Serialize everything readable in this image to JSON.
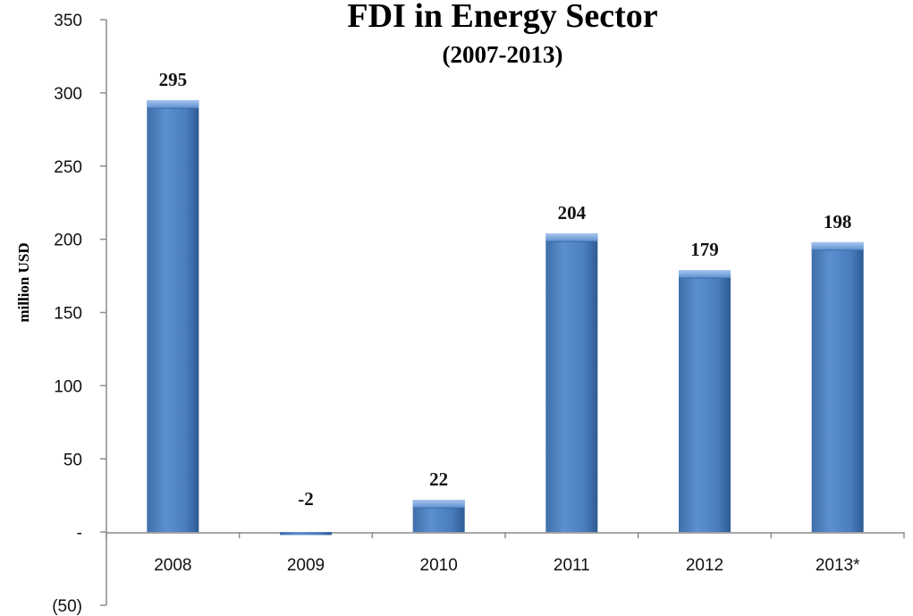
{
  "chart_data": {
    "type": "bar",
    "title": "FDI in Energy Sector",
    "subtitle": "(2007-2013)",
    "xlabel": "",
    "ylabel": "million USD",
    "ylim": [
      -50,
      350
    ],
    "yticks": [
      {
        "value": 350,
        "label": "350"
      },
      {
        "value": 300,
        "label": "300"
      },
      {
        "value": 250,
        "label": "250"
      },
      {
        "value": 200,
        "label": "200"
      },
      {
        "value": 150,
        "label": "150"
      },
      {
        "value": 100,
        "label": "100"
      },
      {
        "value": 50,
        "label": "50"
      },
      {
        "value": 0,
        "label": "-"
      },
      {
        "value": -50,
        "label": "(50)"
      }
    ],
    "categories": [
      "2008",
      "2009",
      "2010",
      "2011",
      "2012",
      "2013*"
    ],
    "values": [
      295,
      -2,
      22,
      204,
      179,
      198
    ],
    "data_labels": [
      "295",
      "-2",
      "22",
      "204",
      "179",
      "198"
    ],
    "bar_color": "#4F81BD",
    "grid": false,
    "legend": "none"
  }
}
